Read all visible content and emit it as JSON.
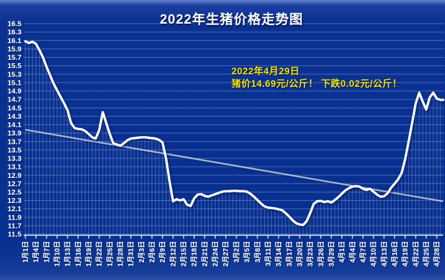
{
  "title": "2022年生猪价格走势图",
  "annotation": {
    "line1": "2022年4月29日",
    "line2": "猪价14.69元/公斤！ 下跌0.02元/公斤！",
    "color": "#f2e60e"
  },
  "colors": {
    "background": "#0a3192",
    "gridline": "#8ea3cf",
    "drop_line": "#8ea3cf",
    "price_line": "#ffffff",
    "trend_line": "#cdd5e8",
    "axis_line": "#e8eef8",
    "label_text": "#ffffff"
  },
  "chart_data": {
    "type": "line",
    "title": "2022年生猪价格走势图",
    "xlabel": "",
    "ylabel": "",
    "legend": "none",
    "grid": "horizontal gridlines every 0.2 + vertical drop lines from each daily point to x-axis",
    "y_axis": {
      "min": 11.5,
      "max": 16.5,
      "step": 0.2
    },
    "y_tick_labels": [
      "16.5",
      "16.3",
      "16.1",
      "15.9",
      "15.7",
      "15.5",
      "15.3",
      "15.1",
      "14.9",
      "14.7",
      "14.5",
      "14.3",
      "14.1",
      "13.9",
      "13.7",
      "13.5",
      "13.3",
      "13.1",
      "12.9",
      "12.7",
      "12.5",
      "12.3",
      "12.1",
      "11.9",
      "11.7",
      "11.5"
    ],
    "x_tick_labels": [
      "1月1日",
      "1月4日",
      "1月7日",
      "1月10日",
      "1月13日",
      "1月16日",
      "1月19日",
      "1月22日",
      "1月25日",
      "1月28日",
      "1月31日",
      "2月3日",
      "2月6日",
      "2月9日",
      "2月12日",
      "2月15日",
      "2月18日",
      "2月21日",
      "2月24日",
      "2月27日",
      "3月2日",
      "3月5日",
      "3月8日",
      "3月11日",
      "3月14日",
      "3月17日",
      "3月20日",
      "3月23日",
      "3月26日",
      "3月29日",
      "4月1日",
      "4月4日",
      "4月7日",
      "4月10日",
      "4月13日",
      "4月16日",
      "4月19日",
      "4月22日",
      "4月25日",
      "4月28日"
    ],
    "series": [
      {
        "name": "生猪价格 (元/公斤)",
        "sampling": "daily",
        "start_date": "1月1日",
        "end_date": "4月29日",
        "values": [
          16.08,
          16.04,
          16.07,
          16.02,
          15.87,
          15.7,
          15.48,
          15.28,
          15.08,
          14.92,
          14.76,
          14.61,
          14.44,
          14.14,
          14.02,
          14.0,
          13.99,
          13.95,
          13.88,
          13.8,
          13.77,
          13.97,
          14.4,
          14.14,
          13.88,
          13.66,
          13.63,
          13.6,
          13.66,
          13.73,
          13.77,
          13.78,
          13.79,
          13.8,
          13.8,
          13.79,
          13.78,
          13.77,
          13.74,
          13.68,
          13.3,
          12.76,
          12.28,
          12.33,
          12.3,
          12.33,
          12.2,
          12.17,
          12.35,
          12.44,
          12.45,
          12.41,
          12.39,
          12.42,
          12.45,
          12.48,
          12.51,
          12.52,
          12.52,
          12.53,
          12.53,
          12.52,
          12.52,
          12.51,
          12.46,
          12.39,
          12.31,
          12.23,
          12.16,
          12.13,
          12.12,
          12.11,
          12.09,
          12.07,
          12.0,
          11.92,
          11.83,
          11.76,
          11.73,
          11.72,
          11.81,
          12.0,
          12.22,
          12.28,
          12.29,
          12.26,
          12.28,
          12.25,
          12.31,
          12.38,
          12.46,
          12.54,
          12.59,
          12.63,
          12.64,
          12.63,
          12.58,
          12.55,
          12.58,
          12.51,
          12.44,
          12.39,
          12.4,
          12.47,
          12.6,
          12.7,
          12.8,
          12.95,
          13.28,
          13.7,
          14.15,
          14.6,
          14.86,
          14.65,
          14.46,
          14.75,
          14.86,
          14.72,
          14.69
        ]
      }
    ],
    "trendline": {
      "type": "linear",
      "start_value": 13.98,
      "end_value": 12.28
    }
  }
}
